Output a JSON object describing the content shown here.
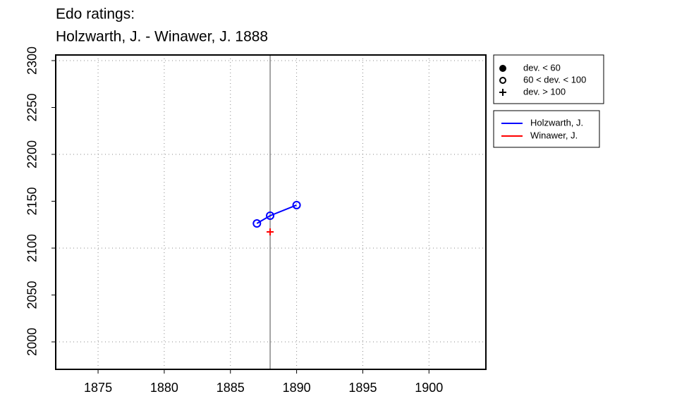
{
  "chart_data": {
    "type": "line",
    "title": "Edo ratings:",
    "subtitle": "Holzwarth, J. - Winawer, J. 1888",
    "xlim": [
      1871.8,
      1904.3
    ],
    "ylim": [
      1970.7,
      2306
    ],
    "xticks": [
      1875,
      1880,
      1885,
      1890,
      1895,
      1900
    ],
    "yticks": [
      2000,
      2050,
      2100,
      2150,
      2200,
      2250,
      2300
    ],
    "xgrid": [
      1875,
      1880,
      1885,
      1890,
      1895,
      1900
    ],
    "ygrid": [
      2000,
      2100,
      2200,
      2300
    ],
    "vline": 1888,
    "marker_legend": [
      {
        "label": "dev. < 60",
        "marker": "filled-circle"
      },
      {
        "label": "60 < dev. < 100",
        "marker": "open-circle"
      },
      {
        "label": "dev. > 100",
        "marker": "plus"
      }
    ],
    "series": [
      {
        "name": "Holzwarth, J.",
        "color": "#0000ff",
        "marker": "open-circle",
        "x": [
          1887,
          1888,
          1890
        ],
        "values": [
          2126.3,
          2134.6,
          2145.9
        ]
      },
      {
        "name": "Winawer, J.",
        "color": "#ff0000",
        "marker": "plus",
        "x": [
          1888
        ],
        "values": [
          2117.3
        ]
      }
    ]
  }
}
